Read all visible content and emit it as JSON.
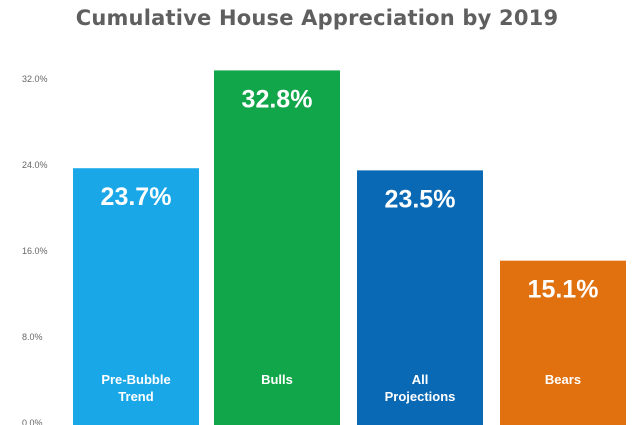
{
  "chart_data": {
    "type": "bar",
    "title": "Cumulative House Appreciation by 2019",
    "categories": [
      "Pre-Bubble\nTrend",
      "Bulls",
      "All\nProjections",
      "Bears"
    ],
    "values": [
      23.7,
      32.8,
      23.5,
      15.1
    ],
    "data_labels": [
      "23.7%",
      "32.8%",
      "23.5%",
      "15.1%"
    ],
    "colors": [
      "#1aa7e8",
      "#12a64a",
      "#0a69b5",
      "#e1700f"
    ],
    "ylim": [
      0,
      32
    ],
    "yticks": [
      0,
      8,
      16,
      24,
      32
    ],
    "ytick_labels": [
      "0.0%",
      "8.0%",
      "16.0%",
      "24.0%",
      "32.0%"
    ],
    "xlabel": "",
    "ylabel": "",
    "grid": false,
    "legend": "none"
  }
}
